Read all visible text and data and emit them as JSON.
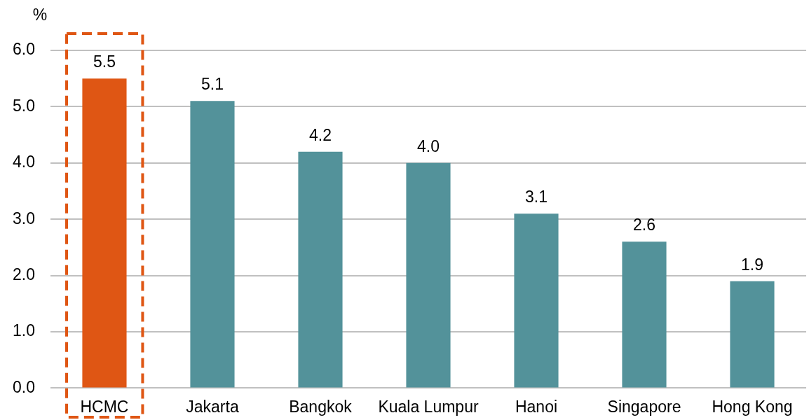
{
  "chart_data": {
    "type": "bar",
    "ylabel": "%",
    "categories": [
      "HCMC",
      "Jakarta",
      "Bangkok",
      "Kuala Lumpur",
      "Hanoi",
      "Singapore",
      "Hong Kong"
    ],
    "values": [
      5.5,
      5.1,
      4.2,
      4.0,
      3.1,
      2.6,
      1.9
    ],
    "value_labels": [
      "5.5",
      "5.1",
      "4.2",
      "4.0",
      "3.1",
      "2.6",
      "1.9"
    ],
    "colors": [
      "#df5614",
      "#53929a",
      "#53929a",
      "#53929a",
      "#53929a",
      "#53929a",
      "#53929a"
    ],
    "ylim": [
      0,
      6
    ],
    "yticks": [
      {
        "value": 0,
        "label": "0.0"
      },
      {
        "value": 1,
        "label": "1.0"
      },
      {
        "value": 2,
        "label": "2.0"
      },
      {
        "value": 3,
        "label": "3.0"
      },
      {
        "value": 4,
        "label": "4.0"
      },
      {
        "value": 5,
        "label": "5.0"
      },
      {
        "value": 6,
        "label": "6.0"
      }
    ],
    "grid": "y"
  }
}
